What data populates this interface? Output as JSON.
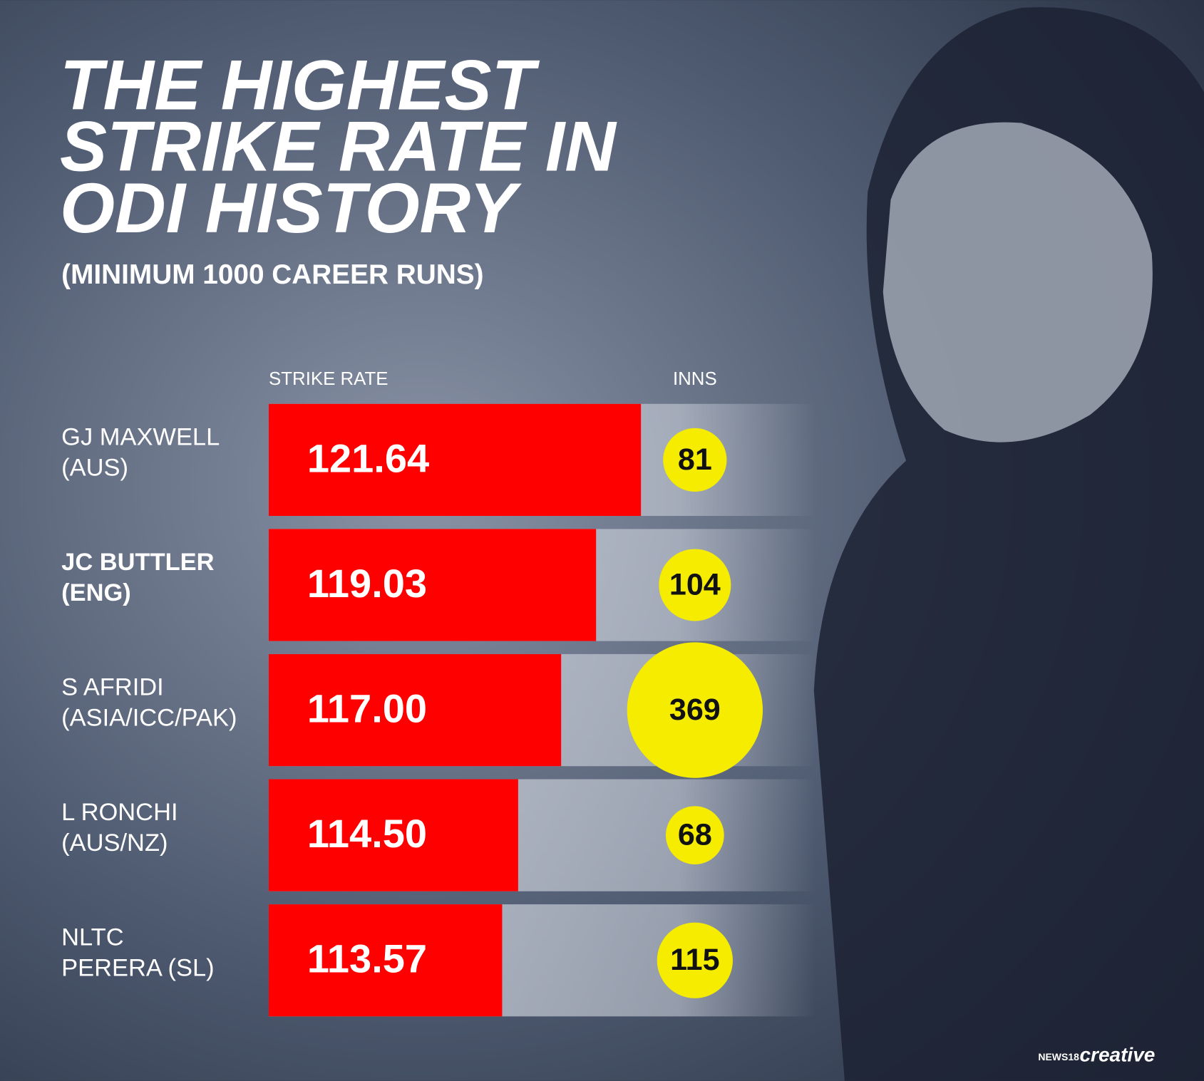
{
  "chart_data": {
    "type": "bar",
    "title": [
      "THE HIGHEST",
      "STRIKE RATE IN",
      "ODI HISTORY"
    ],
    "subtitle": "(MINIMUM 1000 CAREER RUNS)",
    "value_header": "STRIKE RATE",
    "size_header": "INNS",
    "categories": [
      [
        "GJ MAXWELL",
        "(AUS)"
      ],
      [
        "JC BUTTLER",
        "(ENG)"
      ],
      [
        "S AFRIDI",
        "(ASIA/ICC/PAK)"
      ],
      [
        "L RONCHI",
        "(AUS/NZ)"
      ],
      [
        "NLTC",
        "PERERA (SL)"
      ]
    ],
    "highlight": 1,
    "values": [
      121.64,
      119.03,
      117.0,
      114.5,
      113.57
    ],
    "value_labels": [
      "121.64",
      "119.03",
      "117.00",
      "114.50",
      "113.57"
    ],
    "sizes": [
      81,
      104,
      369,
      68,
      115
    ],
    "xlim": [
      100,
      130
    ],
    "color": "#ff0000",
    "size_color": "#f5ec00",
    "logo": [
      "NEWS18",
      "creative"
    ]
  }
}
